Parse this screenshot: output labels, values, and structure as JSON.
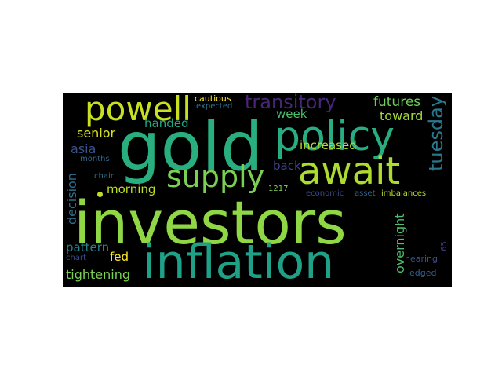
{
  "words": [
    {
      "id": "investors",
      "text": "investors",
      "color": "#8fd744"
    },
    {
      "id": "gold",
      "text": "gold",
      "color": "#29af7f"
    },
    {
      "id": "inflation",
      "text": "inflation",
      "color": "#1fa187"
    },
    {
      "id": "policy",
      "text": "policy",
      "color": "#27ad81"
    },
    {
      "id": "await",
      "text": "await",
      "color": "#addc30"
    },
    {
      "id": "powell",
      "text": "powell",
      "color": "#c8e020"
    },
    {
      "id": "supply",
      "text": "supply",
      "color": "#7ad151"
    },
    {
      "id": "transitory",
      "text": "transitory",
      "color": "#482677"
    },
    {
      "id": "tuesday",
      "text": "tuesday",
      "color": "#2a788e"
    },
    {
      "id": "futures",
      "text": "futures",
      "color": "#6ece58"
    },
    {
      "id": "toward",
      "text": "toward",
      "color": "#a0da39"
    },
    {
      "id": "week",
      "text": "week",
      "color": "#48c16e"
    },
    {
      "id": "handed",
      "text": "handed",
      "color": "#22a884"
    },
    {
      "id": "cautious",
      "text": "cautious",
      "color": "#fde725"
    },
    {
      "id": "expected",
      "text": "expected",
      "color": "#2c728e"
    },
    {
      "id": "senior",
      "text": "senior",
      "color": "#d8e219"
    },
    {
      "id": "asia",
      "text": "asia",
      "color": "#3b528b"
    },
    {
      "id": "months",
      "text": "months",
      "color": "#31688e"
    },
    {
      "id": "increased",
      "text": "increased",
      "color": "#b5de2b"
    },
    {
      "id": "back",
      "text": "back",
      "color": "#414487"
    },
    {
      "id": "morning",
      "text": "morning",
      "color": "#bddf26"
    },
    {
      "id": "decision",
      "text": "decision",
      "color": "#2d708e"
    },
    {
      "id": "chair",
      "text": "chair",
      "color": "#2c728e"
    },
    {
      "id": "1217",
      "text": "1217",
      "color": "#7fd34e"
    },
    {
      "id": "economic",
      "text": "economic",
      "color": "#3e4a89"
    },
    {
      "id": "asset",
      "text": "asset",
      "color": "#31688e"
    },
    {
      "id": "imbalances",
      "text": "imbalances",
      "color": "#b5de2b"
    },
    {
      "id": "overnight",
      "text": "overnight",
      "color": "#4ac16d"
    },
    {
      "id": "pattern",
      "text": "pattern",
      "color": "#26828e"
    },
    {
      "id": "fed",
      "text": "fed",
      "color": "#fde725"
    },
    {
      "id": "tightening",
      "text": "tightening",
      "color": "#7ad151"
    },
    {
      "id": "chart",
      "text": "chart",
      "color": "#3e4989"
    },
    {
      "id": "65",
      "text": "65",
      "color": "#443983"
    },
    {
      "id": "hearing",
      "text": "hearing",
      "color": "#3b528b"
    },
    {
      "id": "edged",
      "text": "edged",
      "color": "#355f8d"
    }
  ]
}
